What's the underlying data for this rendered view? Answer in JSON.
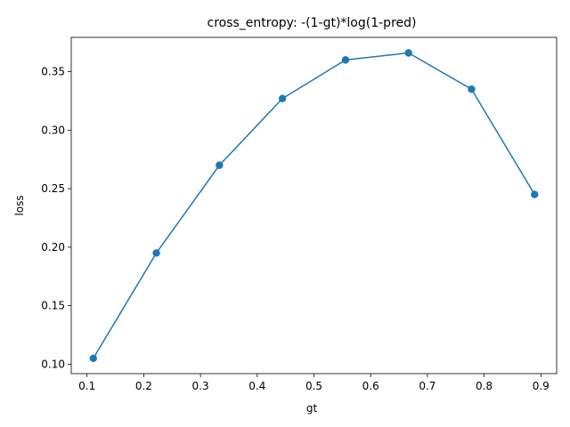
{
  "chart_data": {
    "type": "line",
    "title": "cross_entropy: -(1-gt)*log(1-pred)",
    "xlabel": "gt",
    "ylabel": "loss",
    "xlim": [
      0.0722,
      0.9278
    ],
    "ylim": [
      0.0919,
      0.3793
    ],
    "xticks": [
      0.1,
      0.2,
      0.3,
      0.4,
      0.5,
      0.6,
      0.7,
      0.8,
      0.9
    ],
    "xtick_labels": [
      "0.1",
      "0.2",
      "0.3",
      "0.4",
      "0.5",
      "0.6",
      "0.7",
      "0.8",
      "0.9"
    ],
    "yticks": [
      0.1,
      0.15,
      0.2,
      0.25,
      0.3,
      0.35
    ],
    "ytick_labels": [
      "0.10",
      "0.15",
      "0.20",
      "0.25",
      "0.30",
      "0.35"
    ],
    "grid": false,
    "markers": true,
    "series": [
      {
        "color": "#1f77b4",
        "x": [
          0.1111,
          0.2222,
          0.3333,
          0.4444,
          0.5556,
          0.6667,
          0.7778,
          0.8889
        ],
        "y": [
          0.105,
          0.195,
          0.27,
          0.327,
          0.36,
          0.366,
          0.335,
          0.245
        ]
      }
    ]
  }
}
